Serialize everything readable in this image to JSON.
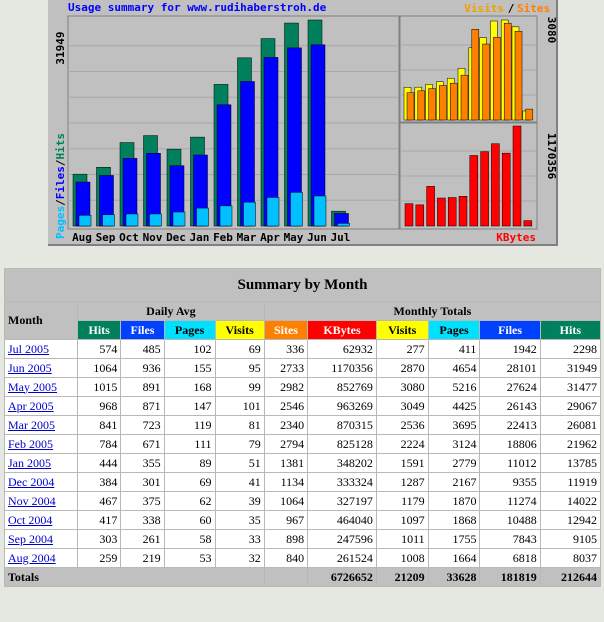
{
  "graph": {
    "title": "Usage summary for www.rudihaberstroh.de",
    "legend_visits": "Visits",
    "legend_slash": "/",
    "legend_sites": "Sites",
    "legend_kbytes": "KBytes",
    "left_axis_pages": "Pages",
    "left_axis_files": "Files",
    "left_axis_hits": "Hits",
    "left_max": "31949",
    "right_top_max": "3080",
    "right_bottom_max": "1170356",
    "months": [
      "Aug",
      "Sep",
      "Oct",
      "Nov",
      "Dec",
      "Jan",
      "Feb",
      "Mar",
      "Apr",
      "May",
      "Jun",
      "Jul"
    ],
    "colors": {
      "hits": "#00805c",
      "files": "#0000ff",
      "pages": "#00c0ff",
      "visits": "#ffff00",
      "sites": "#ff8000",
      "kbytes": "#ff0000",
      "legend_visits": "#f0a000",
      "legend_sites": "#ff8000",
      "title": "#0000ff"
    }
  },
  "chart_data": {
    "type": "bar",
    "categories": [
      "Aug",
      "Sep",
      "Oct",
      "Nov",
      "Dec",
      "Jan",
      "Feb",
      "Mar",
      "Apr",
      "May",
      "Jun",
      "Jul"
    ],
    "series": [
      {
        "name": "Hits",
        "values": [
          8037,
          9105,
          12942,
          14022,
          11919,
          13785,
          21962,
          26081,
          29067,
          31477,
          31949,
          2298
        ]
      },
      {
        "name": "Files",
        "values": [
          6818,
          7843,
          10488,
          11274,
          9355,
          11012,
          18806,
          22413,
          26143,
          27624,
          28101,
          1942
        ]
      },
      {
        "name": "Pages",
        "values": [
          1664,
          1755,
          1868,
          1870,
          2167,
          2779,
          3124,
          3695,
          4425,
          5216,
          4654,
          411
        ]
      },
      {
        "name": "Visits",
        "values": [
          1008,
          1011,
          1097,
          1179,
          1287,
          1591,
          2224,
          2536,
          3049,
          3080,
          2870,
          277
        ]
      },
      {
        "name": "Sites",
        "values": [
          840,
          898,
          967,
          1064,
          1134,
          1381,
          2794,
          2340,
          2546,
          2982,
          2733,
          336
        ]
      },
      {
        "name": "KBytes",
        "values": [
          261524,
          247596,
          464040,
          327197,
          333324,
          348202,
          825128,
          870315,
          963269,
          852769,
          1170356,
          62932
        ]
      }
    ]
  },
  "table": {
    "title": "Summary by Month",
    "group_month": "Month",
    "group_daily": "Daily Avg",
    "group_monthly": "Monthly Totals",
    "headers": [
      "Hits",
      "Files",
      "Pages",
      "Visits",
      "Sites",
      "KBytes",
      "Visits",
      "Pages",
      "Files",
      "Hits"
    ],
    "rows": [
      {
        "month": "Jul 2005",
        "cells": [
          "574",
          "485",
          "102",
          "69",
          "336",
          "62932",
          "277",
          "411",
          "1942",
          "2298"
        ]
      },
      {
        "month": "Jun 2005",
        "cells": [
          "1064",
          "936",
          "155",
          "95",
          "2733",
          "1170356",
          "2870",
          "4654",
          "28101",
          "31949"
        ]
      },
      {
        "month": "May 2005",
        "cells": [
          "1015",
          "891",
          "168",
          "99",
          "2982",
          "852769",
          "3080",
          "5216",
          "27624",
          "31477"
        ]
      },
      {
        "month": "Apr 2005",
        "cells": [
          "968",
          "871",
          "147",
          "101",
          "2546",
          "963269",
          "3049",
          "4425",
          "26143",
          "29067"
        ]
      },
      {
        "month": "Mar 2005",
        "cells": [
          "841",
          "723",
          "119",
          "81",
          "2340",
          "870315",
          "2536",
          "3695",
          "22413",
          "26081"
        ]
      },
      {
        "month": "Feb 2005",
        "cells": [
          "784",
          "671",
          "111",
          "79",
          "2794",
          "825128",
          "2224",
          "3124",
          "18806",
          "21962"
        ]
      },
      {
        "month": "Jan 2005",
        "cells": [
          "444",
          "355",
          "89",
          "51",
          "1381",
          "348202",
          "1591",
          "2779",
          "11012",
          "13785"
        ]
      },
      {
        "month": "Dec 2004",
        "cells": [
          "384",
          "301",
          "69",
          "41",
          "1134",
          "333324",
          "1287",
          "2167",
          "9355",
          "11919"
        ]
      },
      {
        "month": "Nov 2004",
        "cells": [
          "467",
          "375",
          "62",
          "39",
          "1064",
          "327197",
          "1179",
          "1870",
          "11274",
          "14022"
        ]
      },
      {
        "month": "Oct 2004",
        "cells": [
          "417",
          "338",
          "60",
          "35",
          "967",
          "464040",
          "1097",
          "1868",
          "10488",
          "12942"
        ]
      },
      {
        "month": "Sep 2004",
        "cells": [
          "303",
          "261",
          "58",
          "33",
          "898",
          "247596",
          "1011",
          "1755",
          "7843",
          "9105"
        ]
      },
      {
        "month": "Aug 2004",
        "cells": [
          "259",
          "219",
          "53",
          "32",
          "840",
          "261524",
          "1008",
          "1664",
          "6818",
          "8037"
        ]
      }
    ],
    "totals": {
      "label": "Totals",
      "cells": [
        "6726652",
        "21209",
        "33628",
        "181819",
        "212644"
      ]
    }
  }
}
